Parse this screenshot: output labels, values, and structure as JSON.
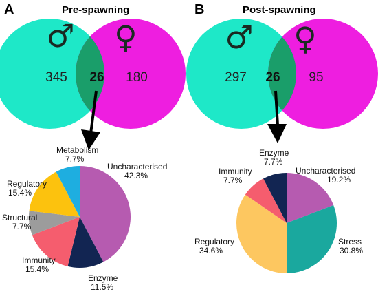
{
  "panels": [
    {
      "letter": "A",
      "title": "Pre-spawning",
      "venn": {
        "male_symbol": "♂",
        "female_symbol": "♀",
        "male_only": "345",
        "overlap": "26",
        "female_only": "180",
        "colors": {
          "male": "#1ee8c8",
          "female": "#ee1ee0",
          "overlap": "#1a9e6a"
        }
      },
      "chart_data": {
        "type": "pie",
        "slices": [
          {
            "label": "Uncharacterised",
            "value": 42.3,
            "value_text": "42.3%",
            "color": "#b65bb0"
          },
          {
            "label": "Enzyme",
            "value": 11.5,
            "value_text": "11.5%",
            "color": "#122552"
          },
          {
            "label": "Immunity",
            "value": 15.4,
            "value_text": "15.4%",
            "color": "#f55d6e"
          },
          {
            "label": "Structural",
            "value": 7.7,
            "value_text": "7.7%",
            "color": "#9c9c9c"
          },
          {
            "label": "Regulatory",
            "value": 15.4,
            "value_text": "15.4%",
            "color": "#fcc20e"
          },
          {
            "label": "Metabolism",
            "value": 7.7,
            "value_text": "7.7%",
            "color": "#1eaee0"
          }
        ]
      }
    },
    {
      "letter": "B",
      "title": "Post-spawning",
      "venn": {
        "male_symbol": "♂",
        "female_symbol": "♀",
        "male_only": "297",
        "overlap": "26",
        "female_only": "95",
        "colors": {
          "male": "#1ee8c8",
          "female": "#ee1ee0",
          "overlap": "#1a9e6a"
        }
      },
      "chart_data": {
        "type": "pie",
        "slices": [
          {
            "label": "Uncharacterised",
            "value": 19.2,
            "value_text": "19.2%",
            "color": "#b65bb0"
          },
          {
            "label": "Stress",
            "value": 30.8,
            "value_text": "30.8%",
            "color": "#1aa89e"
          },
          {
            "label": "Regulatory",
            "value": 34.6,
            "value_text": "34.6%",
            "color": "#fdc760"
          },
          {
            "label": "Immunity",
            "value": 7.7,
            "value_text": "7.7%",
            "color": "#f55d6e"
          },
          {
            "label": "Enzyme",
            "value": 7.7,
            "value_text": "7.7%",
            "color": "#122552"
          }
        ]
      }
    }
  ]
}
